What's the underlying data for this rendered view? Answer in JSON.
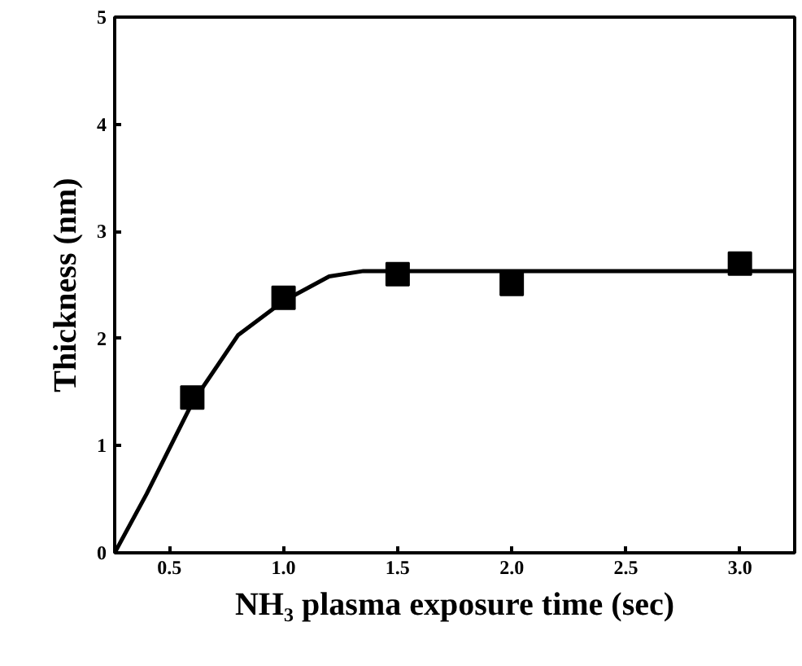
{
  "chart_data": {
    "type": "scatter",
    "xlabel": "NH₃ plasma exposure time (sec)",
    "ylabel": "Thickness (nm)",
    "xlim": [
      0.26,
      3.24
    ],
    "ylim": [
      0,
      5
    ],
    "xticks": [
      0.5,
      {
        "value": 1.0,
        "label": "1.0"
      },
      1.5,
      {
        "value": 2.0,
        "label": "2.0"
      },
      2.5,
      {
        "value": 3.0,
        "label": "3.0"
      }
    ],
    "yticks": [
      0,
      1,
      2,
      3,
      4,
      5
    ],
    "grid": false,
    "series": [
      {
        "marker": "square",
        "color": "#000000",
        "x": [
          0.6,
          1.0,
          1.5,
          2.0,
          3.0
        ],
        "values": [
          1.45,
          2.38,
          2.6,
          2.51,
          2.7
        ]
      },
      {
        "type": "line",
        "line_style": "solid",
        "marker": "none",
        "color": "#000000",
        "x": [
          0.26,
          0.4,
          0.6,
          0.8,
          1.0,
          1.2,
          1.35,
          3.24
        ],
        "values": [
          0,
          0.55,
          1.4,
          2.03,
          2.35,
          2.58,
          2.63,
          2.63
        ]
      }
    ]
  }
}
